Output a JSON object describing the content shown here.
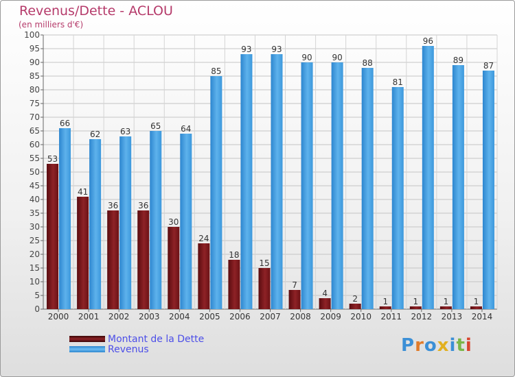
{
  "title": "Revenus/Dette - ACLOU",
  "subtitle": "(en milliers d'€)",
  "logo": {
    "text": "Proxiti",
    "letter_colors": [
      "#3b8fd6",
      "#e07b2a",
      "#3b8fd6",
      "#e2b020",
      "#3b8fd6",
      "#7ab648",
      "#d8442e"
    ]
  },
  "legend": [
    {
      "label": "Montant de la Dette",
      "color": "#7a1518"
    },
    {
      "label": "Revenus",
      "color": "#3e9ae0"
    }
  ],
  "chart_data": {
    "type": "bar",
    "title": "Revenus/Dette - ACLOU",
    "subtitle": "(en milliers d'€)",
    "xlabel": "",
    "ylabel": "",
    "categories": [
      "2000",
      "2001",
      "2002",
      "2003",
      "2004",
      "2005",
      "2006",
      "2007",
      "2008",
      "2009",
      "2010",
      "2011",
      "2012",
      "2013",
      "2014"
    ],
    "series": [
      {
        "name": "Montant de la Dette",
        "color": "#7a1518",
        "values": [
          53,
          41,
          36,
          36,
          30,
          24,
          18,
          15,
          7,
          4,
          2,
          1,
          1,
          1,
          1
        ]
      },
      {
        "name": "Revenus",
        "color": "#3e9ae0",
        "values": [
          66,
          62,
          63,
          65,
          64,
          85,
          93,
          93,
          90,
          90,
          88,
          81,
          96,
          89,
          87
        ]
      }
    ],
    "ylim": [
      0,
      100
    ],
    "ytick_step": 5,
    "grid": true,
    "legend_position": "bottom-left"
  }
}
